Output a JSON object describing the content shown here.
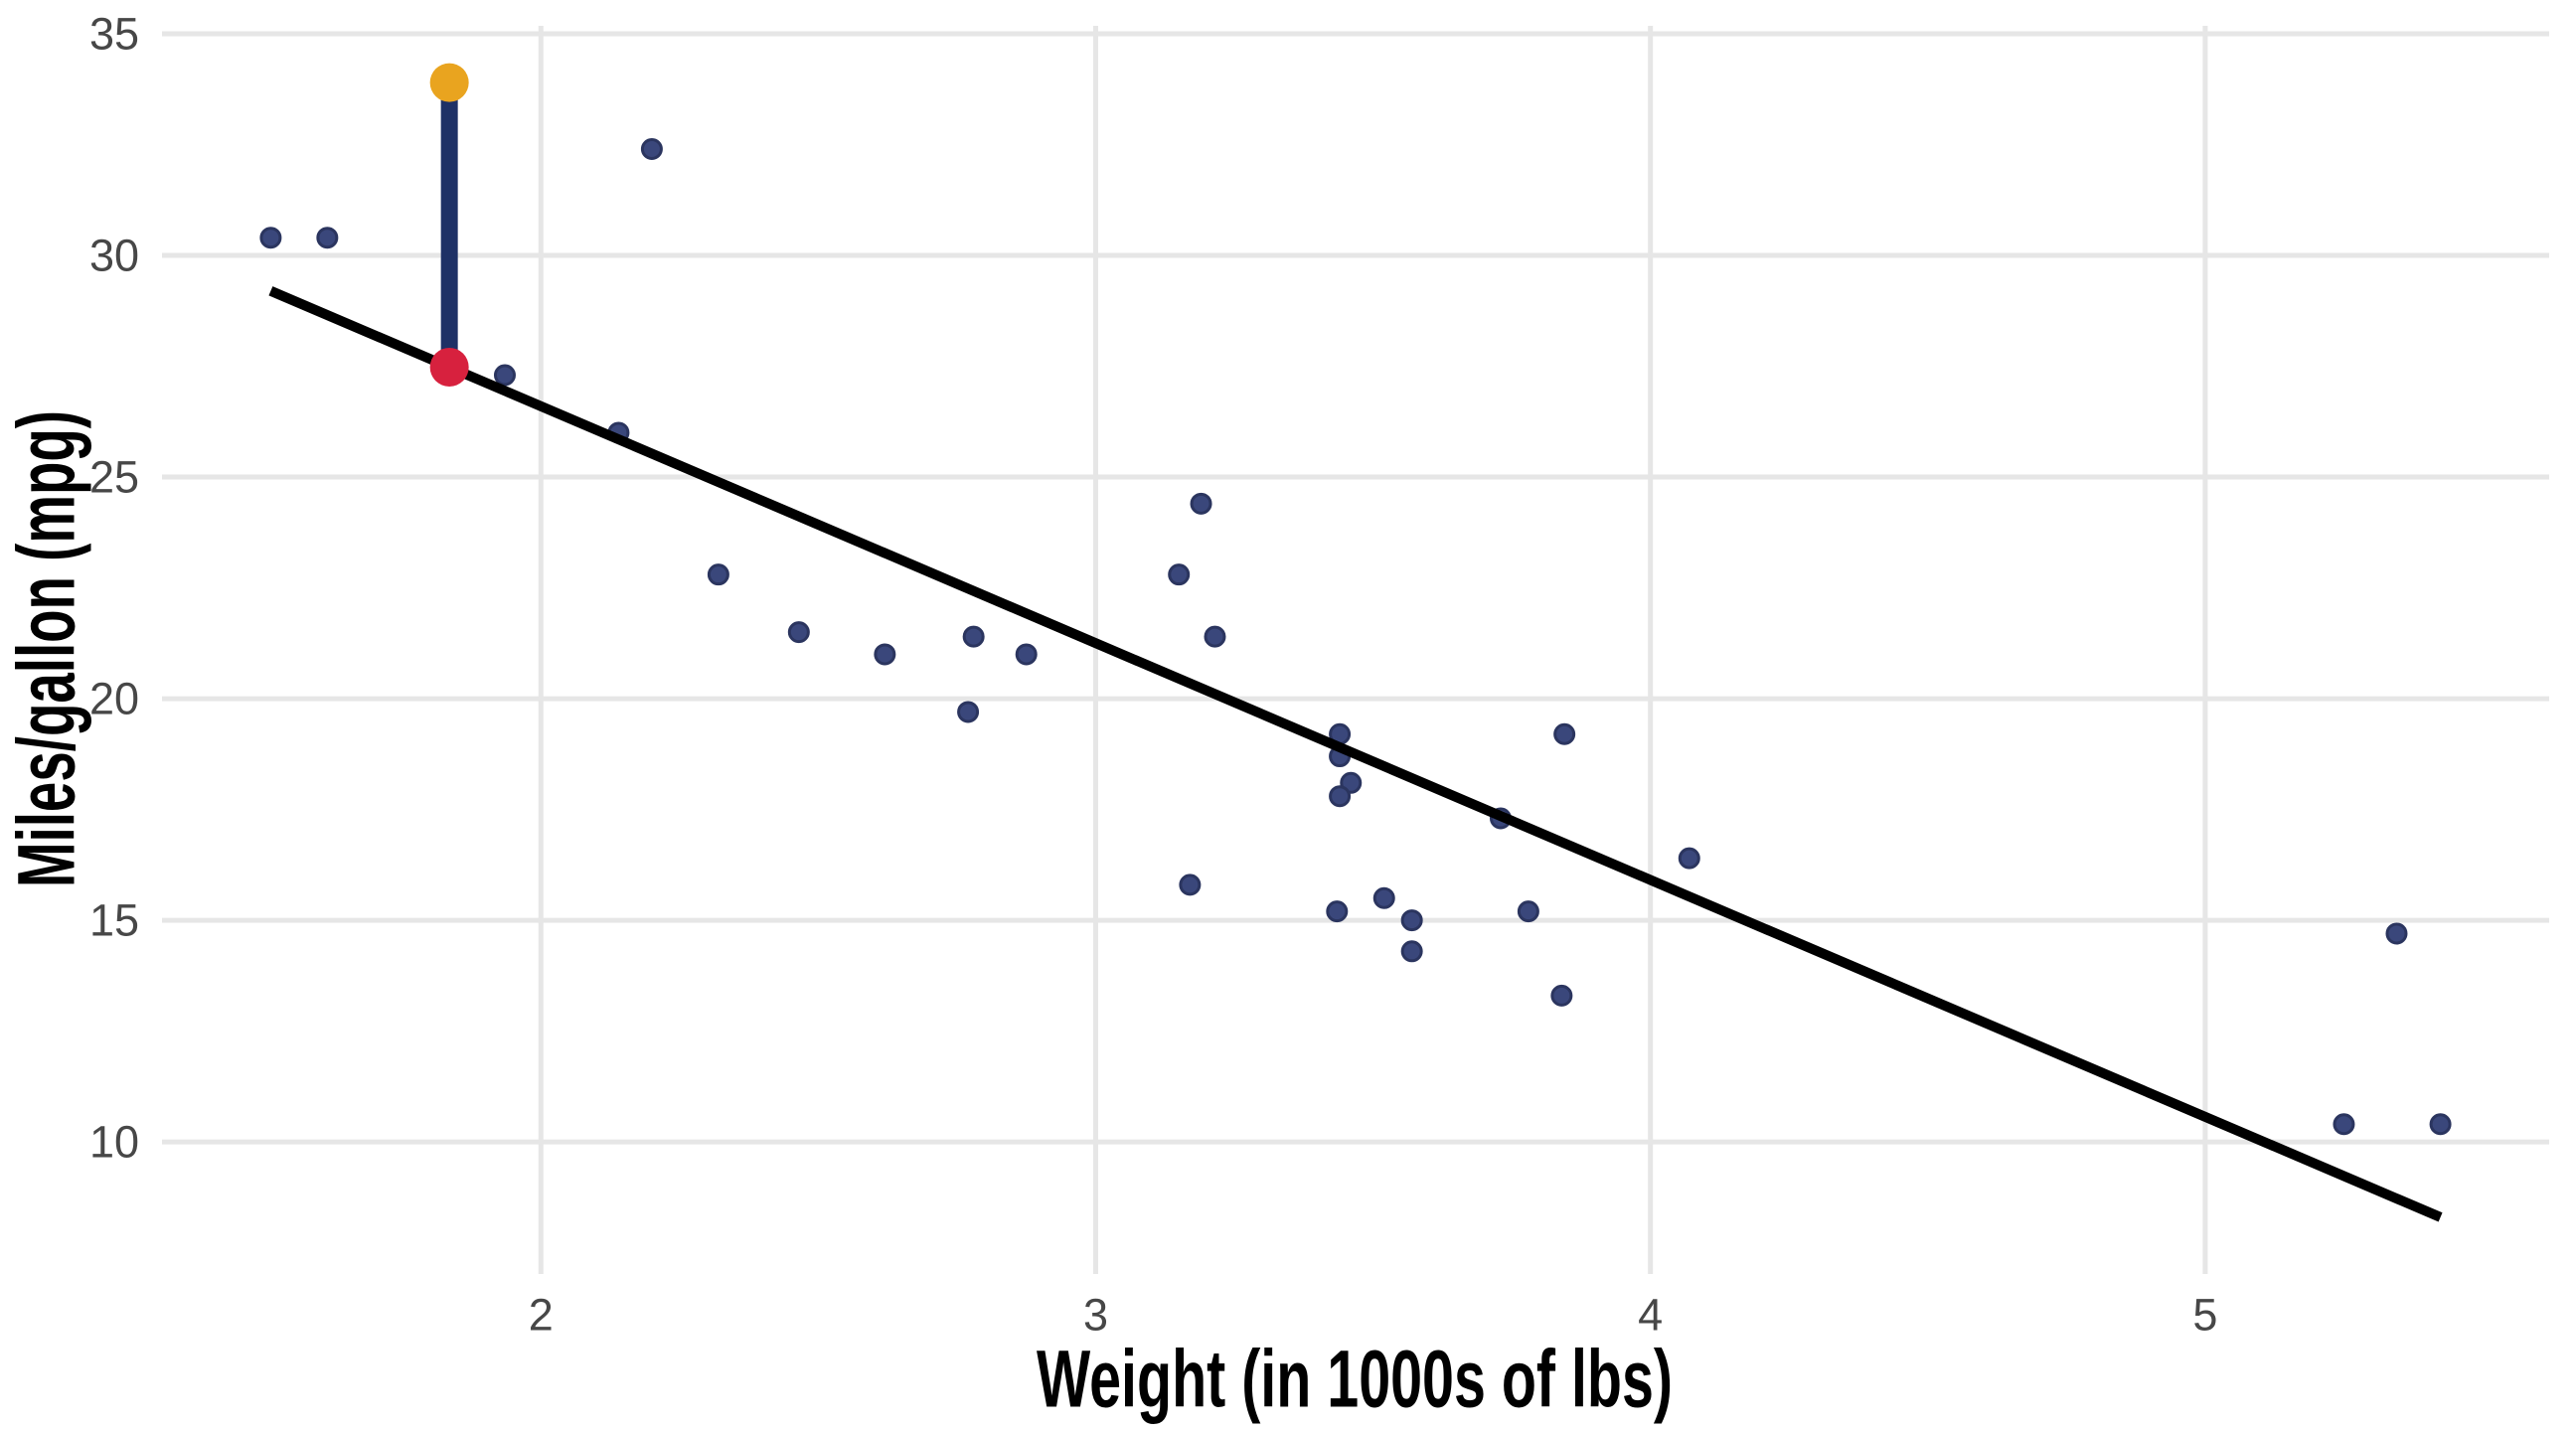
{
  "chart_data": {
    "type": "scatter",
    "title": "",
    "xlabel": "Weight (in 1000s of lbs)",
    "ylabel": "Miles/gallon (mpg)",
    "x_ticks": [
      2,
      3,
      4,
      5
    ],
    "y_ticks": [
      10,
      15,
      20,
      25,
      30,
      35
    ],
    "xlim": [
      1.317,
      5.62
    ],
    "ylim": [
      7.02,
      35.18
    ],
    "grid": "major-only",
    "legend": "none",
    "points": [
      [
        2.62,
        21.0
      ],
      [
        2.875,
        21.0
      ],
      [
        2.32,
        22.8
      ],
      [
        3.215,
        21.4
      ],
      [
        3.44,
        18.7
      ],
      [
        3.46,
        18.1
      ],
      [
        3.57,
        14.3
      ],
      [
        3.19,
        24.4
      ],
      [
        3.15,
        22.8
      ],
      [
        3.44,
        19.2
      ],
      [
        3.44,
        17.8
      ],
      [
        4.07,
        16.4
      ],
      [
        3.73,
        17.3
      ],
      [
        3.78,
        15.2
      ],
      [
        5.25,
        10.4
      ],
      [
        5.424,
        10.4
      ],
      [
        5.345,
        14.7
      ],
      [
        2.2,
        32.4
      ],
      [
        1.615,
        30.4
      ],
      [
        2.465,
        21.5
      ],
      [
        3.52,
        15.5
      ],
      [
        3.435,
        15.2
      ],
      [
        3.84,
        13.3
      ],
      [
        3.845,
        19.2
      ],
      [
        1.935,
        27.3
      ],
      [
        2.14,
        26.0
      ],
      [
        3.17,
        15.8
      ],
      [
        2.77,
        19.7
      ],
      [
        3.57,
        15.0
      ],
      [
        2.78,
        21.4
      ],
      [
        1.513,
        30.4
      ]
    ],
    "highlight": {
      "x": 1.835,
      "y_observed": 33.9,
      "y_fitted": 27.48
    },
    "regression_line": {
      "x1": 1.513,
      "y1": 29.2,
      "x2": 5.424,
      "y2": 8.3
    },
    "colors": {
      "point_fill": "#3A477B",
      "point_border": "#2B355F",
      "regression": "#000000",
      "residual_segment": "#1E3166",
      "observed_point": "#E9A41F",
      "fitted_point": "#D7213E",
      "gridline": "#E6E6E6",
      "tick_text": "#474747",
      "axis_title_text": "#000000",
      "background": "#FFFFFF"
    },
    "point_radius": 9.5,
    "highlight_radius": 19.5
  }
}
